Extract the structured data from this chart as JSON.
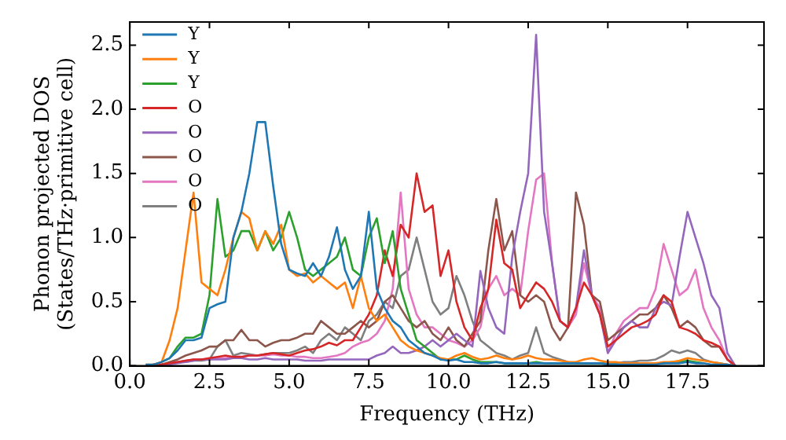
{
  "chart_data": {
    "type": "line",
    "xlabel": "Frequency (THz)",
    "ylabel": "Phonon projected DOS\n(States/THz·primitive cell)",
    "x": [
      0.5,
      0.75,
      1,
      1.25,
      1.5,
      1.75,
      2,
      2.25,
      2.5,
      2.75,
      3,
      3.25,
      3.5,
      3.75,
      4,
      4.25,
      4.5,
      4.75,
      5,
      5.25,
      5.5,
      5.75,
      6,
      6.25,
      6.5,
      6.75,
      7,
      7.25,
      7.5,
      7.75,
      8,
      8.25,
      8.5,
      8.75,
      9,
      9.25,
      9.5,
      9.75,
      10,
      10.25,
      10.5,
      10.75,
      11,
      11.25,
      11.5,
      11.75,
      12,
      12.25,
      12.5,
      12.75,
      13,
      13.25,
      13.5,
      13.75,
      14,
      14.25,
      14.5,
      14.75,
      15,
      15.25,
      15.5,
      15.75,
      16,
      16.25,
      16.5,
      16.75,
      17,
      17.25,
      17.5,
      17.75,
      18,
      18.25,
      18.5,
      18.75,
      19
    ],
    "xlim": [
      0,
      19.9
    ],
    "ylim": [
      0,
      2.68
    ],
    "xticks": [
      {
        "value": 0,
        "label": "0.0"
      },
      2.5,
      {
        "value": 5,
        "label": "5.0"
      },
      7.5,
      {
        "value": 10,
        "label": "10.0"
      },
      12.5,
      {
        "value": 15,
        "label": "15.0"
      },
      17.5
    ],
    "yticks": [
      {
        "value": 0,
        "label": "0.0"
      },
      0.5,
      {
        "value": 1,
        "label": "1.0"
      },
      1.5,
      {
        "value": 2,
        "label": "2.0"
      },
      2.5
    ],
    "grid": false,
    "legend": "top left",
    "marker": "none",
    "line_style": "solid",
    "series": [
      {
        "name": "Y",
        "color": "#1f77b4",
        "values": [
          0.01,
          0.01,
          0.03,
          0.06,
          0.12,
          0.2,
          0.2,
          0.22,
          0.45,
          0.48,
          0.5,
          1.0,
          1.2,
          1.5,
          1.9,
          1.9,
          1.4,
          0.95,
          0.75,
          0.72,
          0.7,
          0.8,
          0.7,
          0.85,
          1.08,
          0.75,
          0.6,
          0.7,
          1.2,
          0.6,
          0.45,
          0.35,
          0.3,
          0.2,
          0.15,
          0.1,
          0.08,
          0.05,
          0.04,
          0.05,
          0.03,
          0.03,
          0.02,
          0.02,
          0.03,
          0.02,
          0.02,
          0.02,
          0.02,
          0.02,
          0.02,
          0.02,
          0.02,
          0.02,
          0.02,
          0.02,
          0.02,
          0.02,
          0.01,
          0.01,
          0.01,
          0.01,
          0.01,
          0.01,
          0.01,
          0.02,
          0.02,
          0.02,
          0.03,
          0.02,
          0.02,
          0.01,
          0.01,
          0.01,
          0
        ]
      },
      {
        "name": "Y",
        "color": "#ff7f0e",
        "values": [
          0.01,
          0.01,
          0.03,
          0.2,
          0.45,
          0.9,
          1.35,
          0.65,
          0.6,
          0.55,
          0.75,
          1.0,
          1.2,
          1.15,
          0.9,
          1.05,
          0.95,
          1.1,
          0.75,
          0.7,
          0.72,
          0.65,
          0.7,
          0.65,
          0.6,
          0.65,
          0.45,
          0.7,
          0.45,
          0.35,
          0.4,
          0.3,
          0.2,
          0.15,
          0.12,
          0.1,
          0.08,
          0.06,
          0.05,
          0.08,
          0.1,
          0.07,
          0.05,
          0.06,
          0.08,
          0.06,
          0.05,
          0.06,
          0.08,
          0.06,
          0.05,
          0.05,
          0.04,
          0.03,
          0.03,
          0.05,
          0.06,
          0.04,
          0.03,
          0.03,
          0.02,
          0.02,
          0.02,
          0.02,
          0.02,
          0.03,
          0.03,
          0.04,
          0.06,
          0.05,
          0.04,
          0.03,
          0.02,
          0.01,
          0
        ]
      },
      {
        "name": "Y",
        "color": "#2ca02c",
        "values": [
          null,
          null,
          0.03,
          0.06,
          0.15,
          0.22,
          0.22,
          0.25,
          0.55,
          1.3,
          0.85,
          0.9,
          1.05,
          1.05,
          0.9,
          1.05,
          0.9,
          1.0,
          1.2,
          1.0,
          0.75,
          0.7,
          0.75,
          0.8,
          0.85,
          1.0,
          0.75,
          0.7,
          1.0,
          1.15,
          0.8,
          1.05,
          0.6,
          0.4,
          0.2,
          0.15,
          0.1,
          0.05,
          0.05,
          0.05,
          0.08,
          0.05,
          0.03,
          0.03,
          0.03,
          0.02,
          0.02,
          0.02,
          0.02,
          0.03,
          0.02,
          0.02,
          0.02,
          0.02,
          0.02,
          0.02,
          0.02,
          0.02,
          0.01,
          0.01,
          0.01,
          0.01,
          0.01,
          0.01,
          0.02,
          0.02,
          0.03,
          0.03,
          0.04,
          0.03,
          0.02,
          null,
          null,
          null,
          null
        ]
      },
      {
        "name": "O",
        "color": "#d62728",
        "values": [
          0,
          0.01,
          0.01,
          0.02,
          0.03,
          0.04,
          0.05,
          0.05,
          0.06,
          0.07,
          0.08,
          0.07,
          0.07,
          0.08,
          0.08,
          0.09,
          0.1,
          0.09,
          0.08,
          0.1,
          0.12,
          0.13,
          0.15,
          0.18,
          0.16,
          0.2,
          0.2,
          0.3,
          0.4,
          0.55,
          0.9,
          0.7,
          1.1,
          1.0,
          1.5,
          1.2,
          1.25,
          0.7,
          0.9,
          0.5,
          0.3,
          0.2,
          0.45,
          0.6,
          1.14,
          0.8,
          0.75,
          0.45,
          0.55,
          0.65,
          0.6,
          0.5,
          0.35,
          0.3,
          0.45,
          0.65,
          0.55,
          0.4,
          0.15,
          0.2,
          0.25,
          0.3,
          0.32,
          0.35,
          0.4,
          0.55,
          0.5,
          0.3,
          0.28,
          0.25,
          0.2,
          0.18,
          0.15,
          0.05,
          0
        ]
      },
      {
        "name": "O",
        "color": "#9467bd",
        "values": [
          null,
          null,
          0.01,
          0.01,
          0.02,
          0.03,
          0.04,
          0.05,
          0.05,
          0.05,
          0.05,
          0.06,
          0.06,
          0.05,
          0.05,
          0.06,
          0.05,
          0.05,
          0.05,
          0.05,
          0.04,
          0.04,
          0.04,
          0.05,
          0.05,
          0.05,
          0.05,
          0.05,
          0.05,
          0.08,
          0.1,
          0.15,
          0.1,
          0.1,
          0.12,
          0.15,
          0.2,
          0.15,
          0.2,
          0.25,
          0.2,
          0.15,
          0.74,
          0.45,
          0.3,
          0.25,
          0.85,
          1.2,
          1.5,
          2.58,
          1.2,
          0.8,
          0.35,
          0.3,
          0.45,
          0.9,
          0.55,
          0.4,
          0.1,
          0.2,
          0.3,
          0.35,
          0.3,
          0.3,
          0.45,
          0.5,
          0.47,
          0.85,
          1.2,
          1.0,
          0.8,
          0.55,
          0.45,
          0.1,
          0
        ]
      },
      {
        "name": "O",
        "color": "#8c564b",
        "values": [
          0,
          0.01,
          0.01,
          0.03,
          0.05,
          0.08,
          0.1,
          0.12,
          0.15,
          0.15,
          0.2,
          0.2,
          0.28,
          0.2,
          0.2,
          0.15,
          0.18,
          0.2,
          0.2,
          0.22,
          0.25,
          0.25,
          0.35,
          0.3,
          0.25,
          0.25,
          0.3,
          0.35,
          0.3,
          0.35,
          0.5,
          0.55,
          0.45,
          0.35,
          0.3,
          0.35,
          0.25,
          0.2,
          0.3,
          0.2,
          0.15,
          0.25,
          0.35,
          0.9,
          1.3,
          0.9,
          1.05,
          0.55,
          0.5,
          0.55,
          0.5,
          0.3,
          0.2,
          0.3,
          1.35,
          1.1,
          0.55,
          0.5,
          0.2,
          0.25,
          0.3,
          0.35,
          0.4,
          0.4,
          0.45,
          0.55,
          0.45,
          0.3,
          0.35,
          0.3,
          0.2,
          0.15,
          0.15,
          0.05,
          0
        ]
      },
      {
        "name": "O",
        "color": "#e377c2",
        "values": [
          null,
          null,
          null,
          0.02,
          0.03,
          0.04,
          0.05,
          0.05,
          0.05,
          0.06,
          0.06,
          0.07,
          0.07,
          0.08,
          0.08,
          0.08,
          0.09,
          0.08,
          0.08,
          0.07,
          0.07,
          0.06,
          0.06,
          0.07,
          0.08,
          0.1,
          0.15,
          0.18,
          0.2,
          0.25,
          0.35,
          0.6,
          1.35,
          0.6,
          0.4,
          0.3,
          0.3,
          0.25,
          0.2,
          0.18,
          0.15,
          0.2,
          0.3,
          0.6,
          0.7,
          0.55,
          0.6,
          0.55,
          1.05,
          1.45,
          1.5,
          0.8,
          0.35,
          0.3,
          0.4,
          0.8,
          0.55,
          0.45,
          0.1,
          0.25,
          0.35,
          0.4,
          0.45,
          0.45,
          0.6,
          0.95,
          0.75,
          0.55,
          0.6,
          0.75,
          0.45,
          0.3,
          0.2,
          0.05,
          0
        ]
      },
      {
        "name": "O",
        "color": "#7f7f7f",
        "values": [
          0,
          0.01,
          0.01,
          0.02,
          0.03,
          0.03,
          0.04,
          0.04,
          0.05,
          0.15,
          0.2,
          0.08,
          0.1,
          0.09,
          0.08,
          0.09,
          0.1,
          0.1,
          0.1,
          0.12,
          0.15,
          0.1,
          0.2,
          0.25,
          0.2,
          0.3,
          0.25,
          0.2,
          0.35,
          0.4,
          0.5,
          0.45,
          0.7,
          0.75,
          1.0,
          0.75,
          0.5,
          0.4,
          0.45,
          0.7,
          0.55,
          0.35,
          0.2,
          0.15,
          0.1,
          0.08,
          0.05,
          0.08,
          0.1,
          0.3,
          0.1,
          0.07,
          0.05,
          0.03,
          0.02,
          0.02,
          0.02,
          0.02,
          0.02,
          0.02,
          0.03,
          0.03,
          0.04,
          0.04,
          0.05,
          0.08,
          0.12,
          0.1,
          0.12,
          0.1,
          0.05,
          0.03,
          0.02,
          0.01,
          0
        ]
      }
    ]
  }
}
